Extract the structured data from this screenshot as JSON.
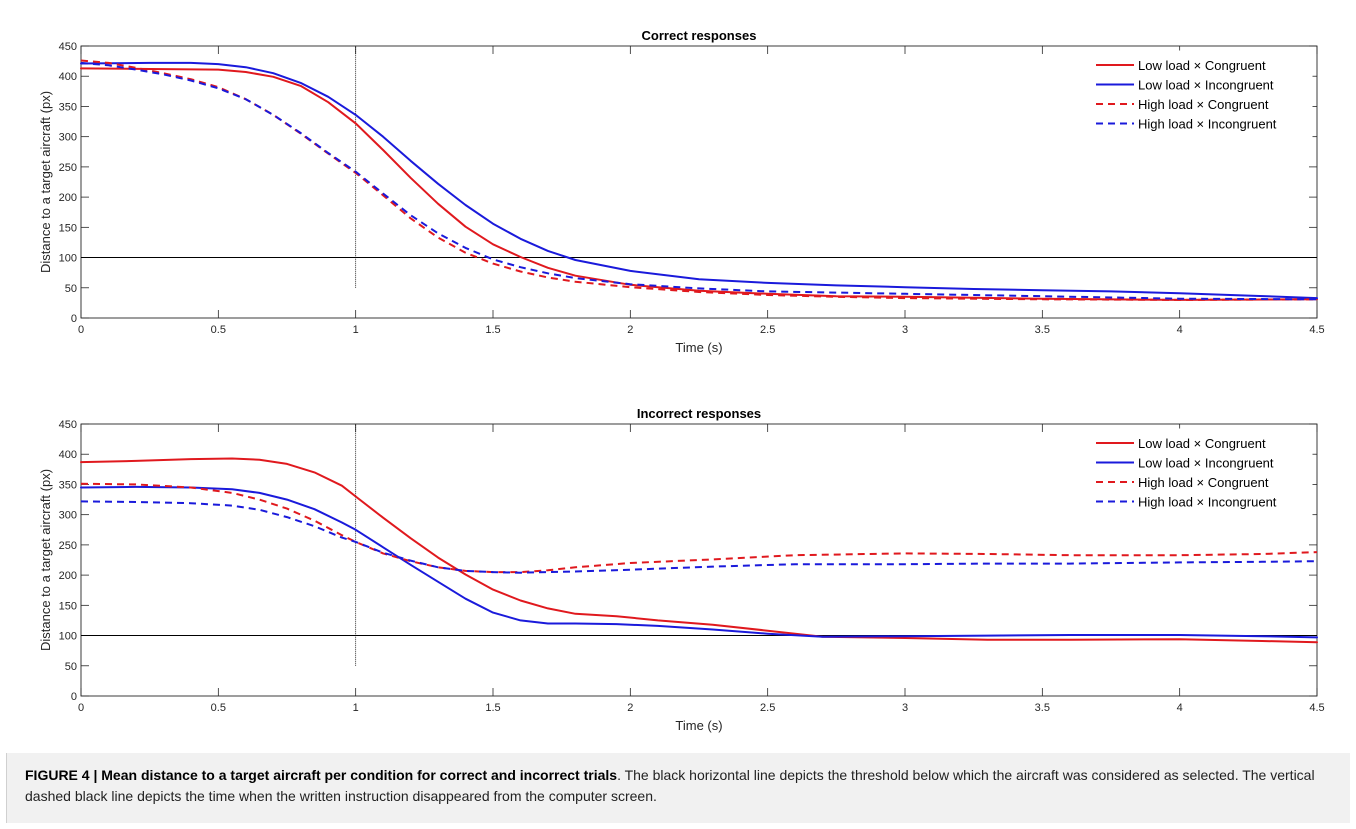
{
  "chart_data": [
    {
      "type": "line",
      "title": "Correct responses",
      "xlabel": "Time (s)",
      "ylabel": "Distance to a target aircraft (px)",
      "xlim": [
        0,
        4.5
      ],
      "ylim": [
        0,
        450
      ],
      "xticks": [
        0,
        0.5,
        1,
        1.5,
        2,
        2.5,
        3,
        3.5,
        4,
        4.5
      ],
      "yticks": [
        0,
        50,
        100,
        150,
        200,
        250,
        300,
        350,
        400,
        450
      ],
      "xtick_labels": [
        "0",
        "0.5",
        "1",
        "1.5",
        "2",
        "2.5",
        "3",
        "3.5",
        "4",
        "4.5"
      ],
      "ytick_labels": [
        "0",
        "50",
        "100",
        "150",
        "200",
        "250",
        "300",
        "350",
        "400",
        "450"
      ],
      "threshold_y": 100,
      "vline_x": 1,
      "vline_range": [
        50,
        450
      ],
      "legend_position": "top-right",
      "series": [
        {
          "name": "Low load × Congruent",
          "color": "#e0191e",
          "dash": "solid",
          "x": [
            0,
            0.25,
            0.5,
            0.6,
            0.7,
            0.8,
            0.9,
            1.0,
            1.1,
            1.2,
            1.3,
            1.4,
            1.5,
            1.6,
            1.7,
            1.8,
            2.0,
            2.25,
            2.5,
            2.75,
            3.0,
            3.5,
            4.0,
            4.5
          ],
          "y": [
            413,
            412,
            411,
            407,
            399,
            384,
            357,
            322,
            278,
            232,
            189,
            151,
            122,
            101,
            83,
            70,
            55,
            45,
            40,
            36,
            35,
            32,
            30,
            31
          ]
        },
        {
          "name": "Low load × Incongruent",
          "color": "#1a1adb",
          "dash": "solid",
          "x": [
            0,
            0.25,
            0.4,
            0.5,
            0.6,
            0.7,
            0.8,
            0.9,
            1.0,
            1.1,
            1.2,
            1.3,
            1.4,
            1.5,
            1.6,
            1.7,
            1.8,
            2.0,
            2.25,
            2.5,
            2.75,
            3.0,
            3.25,
            3.5,
            3.75,
            4.0,
            4.25,
            4.5
          ],
          "y": [
            421,
            422,
            422,
            420,
            415,
            405,
            389,
            366,
            336,
            300,
            260,
            222,
            187,
            156,
            131,
            111,
            96,
            78,
            64,
            58,
            54,
            51,
            48,
            46,
            44,
            41,
            37,
            33
          ]
        },
        {
          "name": "High load × Congruent",
          "color": "#e0191e",
          "dash": "dashed",
          "x": [
            0,
            0.1,
            0.2,
            0.3,
            0.4,
            0.5,
            0.6,
            0.7,
            0.8,
            0.9,
            1.0,
            1.1,
            1.2,
            1.3,
            1.4,
            1.5,
            1.6,
            1.7,
            1.8,
            2.0,
            2.25,
            2.5,
            2.75,
            3.0,
            3.5,
            4.0,
            4.5
          ],
          "y": [
            426,
            422,
            414,
            405,
            395,
            382,
            362,
            336,
            305,
            272,
            240,
            203,
            165,
            133,
            108,
            90,
            77,
            67,
            60,
            51,
            43,
            38,
            35,
            33,
            31,
            30,
            31
          ]
        },
        {
          "name": "High load × Incongruent",
          "color": "#1a1adb",
          "dash": "dashed",
          "x": [
            0,
            0.1,
            0.2,
            0.3,
            0.4,
            0.5,
            0.6,
            0.7,
            0.8,
            0.9,
            1.0,
            1.1,
            1.2,
            1.3,
            1.4,
            1.5,
            1.6,
            1.7,
            1.8,
            2.0,
            2.25,
            2.5,
            2.75,
            3.0,
            3.5,
            4.0,
            4.5
          ],
          "y": [
            422,
            418,
            411,
            403,
            393,
            380,
            362,
            336,
            306,
            273,
            242,
            206,
            170,
            140,
            116,
            97,
            84,
            74,
            66,
            56,
            49,
            44,
            42,
            40,
            36,
            32,
            31
          ]
        }
      ]
    },
    {
      "type": "line",
      "title": "Incorrect responses",
      "xlabel": "Time (s)",
      "ylabel": "Distance to a target aircraft (px)",
      "xlim": [
        0,
        4.5
      ],
      "ylim": [
        0,
        450
      ],
      "xticks": [
        0,
        0.5,
        1,
        1.5,
        2,
        2.5,
        3,
        3.5,
        4,
        4.5
      ],
      "yticks": [
        0,
        50,
        100,
        150,
        200,
        250,
        300,
        350,
        400,
        450
      ],
      "xtick_labels": [
        "0",
        "0.5",
        "1",
        "1.5",
        "2",
        "2.5",
        "3",
        "3.5",
        "4",
        "4.5"
      ],
      "ytick_labels": [
        "0",
        "50",
        "100",
        "150",
        "200",
        "250",
        "300",
        "350",
        "400",
        "450"
      ],
      "threshold_y": 100,
      "vline_x": 1,
      "vline_range": [
        50,
        450
      ],
      "legend_position": "top-right",
      "series": [
        {
          "name": "Low load × Congruent",
          "color": "#e0191e",
          "dash": "solid",
          "x": [
            0,
            0.2,
            0.4,
            0.55,
            0.65,
            0.75,
            0.85,
            0.95,
            1.0,
            1.1,
            1.2,
            1.3,
            1.4,
            1.5,
            1.6,
            1.7,
            1.8,
            1.95,
            2.1,
            2.3,
            2.5,
            2.7,
            3.0,
            3.3,
            3.6,
            4.0,
            4.3,
            4.5
          ],
          "y": [
            387,
            389,
            392,
            393,
            391,
            384,
            370,
            348,
            330,
            295,
            261,
            229,
            201,
            176,
            158,
            145,
            136,
            132,
            125,
            118,
            108,
            98,
            96,
            93,
            93,
            94,
            91,
            89
          ]
        },
        {
          "name": "Low load × Incongruent",
          "color": "#1a1adb",
          "dash": "solid",
          "x": [
            0,
            0.2,
            0.4,
            0.55,
            0.65,
            0.75,
            0.85,
            0.95,
            1.0,
            1.1,
            1.2,
            1.3,
            1.4,
            1.5,
            1.6,
            1.7,
            1.8,
            1.95,
            2.1,
            2.3,
            2.5,
            2.7,
            3.0,
            3.3,
            3.6,
            4.0,
            4.3,
            4.5
          ],
          "y": [
            345,
            346,
            345,
            342,
            336,
            325,
            309,
            287,
            275,
            246,
            217,
            189,
            161,
            138,
            125,
            120,
            120,
            119,
            116,
            110,
            103,
            98,
            99,
            100,
            101,
            101,
            99,
            97
          ]
        },
        {
          "name": "High load × Congruent",
          "color": "#e0191e",
          "dash": "dashed",
          "x": [
            0,
            0.2,
            0.4,
            0.55,
            0.65,
            0.75,
            0.85,
            0.95,
            1.0,
            1.1,
            1.2,
            1.3,
            1.4,
            1.5,
            1.6,
            1.7,
            1.8,
            2.0,
            2.3,
            2.6,
            3.0,
            3.3,
            3.6,
            4.0,
            4.3,
            4.5
          ],
          "y": [
            351,
            350,
            345,
            336,
            325,
            310,
            290,
            266,
            255,
            236,
            223,
            213,
            207,
            205,
            205,
            208,
            213,
            220,
            226,
            233,
            236,
            235,
            233,
            233,
            235,
            238
          ]
        },
        {
          "name": "High load × Incongruent",
          "color": "#1a1adb",
          "dash": "dashed",
          "x": [
            0,
            0.2,
            0.4,
            0.55,
            0.65,
            0.75,
            0.85,
            0.95,
            1.0,
            1.1,
            1.2,
            1.3,
            1.4,
            1.5,
            1.6,
            1.7,
            1.8,
            2.0,
            2.3,
            2.6,
            3.0,
            3.3,
            3.6,
            4.0,
            4.3,
            4.5
          ],
          "y": [
            322,
            321,
            319,
            315,
            308,
            296,
            281,
            262,
            255,
            237,
            224,
            213,
            207,
            205,
            204,
            205,
            206,
            209,
            214,
            218,
            218,
            219,
            219,
            221,
            222,
            223
          ]
        }
      ]
    }
  ],
  "caption": {
    "label": "FIGURE 4 | Mean distance to a target aircraft per condition for correct and incorrect trials",
    "text": ". The black horizontal line depicts the threshold below which the aircraft was considered as selected. The vertical dashed black line depicts the time when the written instruction disappeared from the computer screen."
  }
}
